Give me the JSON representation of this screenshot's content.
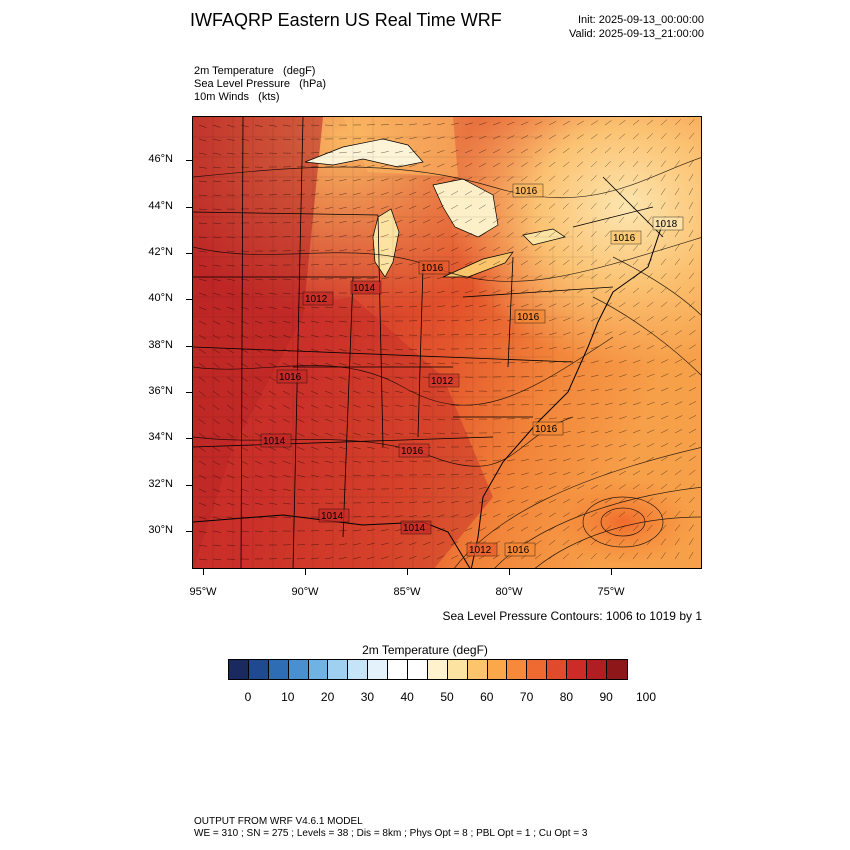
{
  "header": {
    "title": "IWFAQRP Eastern US Real Time WRF",
    "init": "Init: 2025-09-13_00:00:00",
    "valid": "Valid: 2025-09-13_21:00:00"
  },
  "fields": [
    "2m Temperature   (degF)",
    "Sea Level Pressure   (hPa)",
    "10m Winds   (kts)"
  ],
  "map": {
    "lat_labels": [
      "46°N",
      "44°N",
      "42°N",
      "40°N",
      "38°N",
      "36°N",
      "34°N",
      "32°N",
      "30°N"
    ],
    "lon_labels": [
      "95°W",
      "90°W",
      "85°W",
      "80°W",
      "75°W"
    ],
    "pressure_labels": [
      "1016",
      "1018",
      "1016",
      "1016",
      "1012",
      "1014",
      "1016",
      "1016",
      "1012",
      "1016",
      "1014",
      "1016",
      "1014",
      "1014",
      "1012",
      "1016"
    ],
    "colors": {
      "hot": "#b52025",
      "warm": "#d33a2b",
      "orange": "#e85a2b",
      "light_orange": "#f58a36",
      "pale": "#fbb862",
      "cream": "#fde6b0",
      "lake": "#fdf4d8"
    }
  },
  "contour_note": "Sea Level Pressure Contours: 1006 to 1019 by 1",
  "colorbar": {
    "title": "2m Temperature  (degF)",
    "colors": [
      "#1a2a5e",
      "#1f4a8f",
      "#2e6db4",
      "#4a90cf",
      "#6fb2e4",
      "#9fd0f0",
      "#c5e4f7",
      "#e4f2fb",
      "#ffffff",
      "#ffffff",
      "#fff2cc",
      "#fde3a2",
      "#fcc56c",
      "#fba84a",
      "#f6893a",
      "#ef6a30",
      "#e24a2c",
      "#cc2b27",
      "#b01e23",
      "#8e1819"
    ],
    "labels": [
      "0",
      "10",
      "20",
      "30",
      "40",
      "50",
      "60",
      "70",
      "80",
      "90",
      "100"
    ]
  },
  "footer": {
    "line1": "OUTPUT FROM WRF V4.6.1 MODEL",
    "line2": "WE = 310 ; SN = 275 ; Levels = 38 ; Dis = 8km ; Phys Opt = 8 ; PBL Opt = 1 ; Cu Opt = 3"
  }
}
